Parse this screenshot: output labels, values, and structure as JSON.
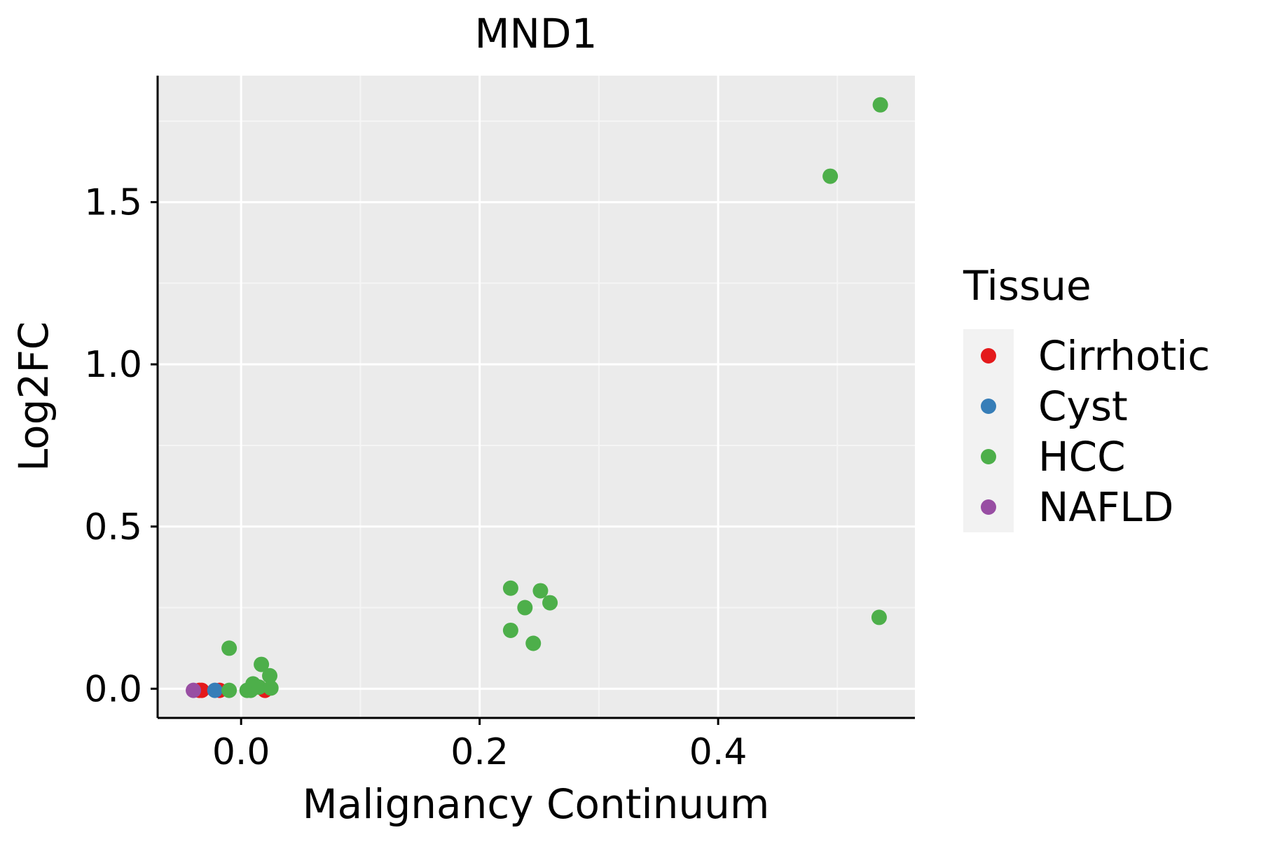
{
  "chart_data": {
    "type": "scatter",
    "title": "MND1",
    "xlabel": "Malignancy Continuum",
    "ylabel": "Log2FC",
    "xlim": [
      -0.07,
      0.565
    ],
    "ylim": [
      -0.09,
      1.89
    ],
    "x_ticks": [
      0.0,
      0.2,
      0.4
    ],
    "x_tick_labels": [
      "0.0",
      "0.2",
      "0.4"
    ],
    "y_ticks": [
      0.0,
      0.5,
      1.0,
      1.5
    ],
    "y_tick_labels": [
      "0.0",
      "0.5",
      "1.0",
      "1.5"
    ],
    "grid": true,
    "legend": {
      "title": "Tissue",
      "position": "right",
      "entries": [
        {
          "label": "Cirrhotic",
          "color": "#E41A1C"
        },
        {
          "label": "Cyst",
          "color": "#377EB8"
        },
        {
          "label": "HCC",
          "color": "#4DAF4A"
        },
        {
          "label": "NAFLD",
          "color": "#984EA3"
        }
      ]
    },
    "series": [
      {
        "name": "Cirrhotic",
        "color": "#E41A1C",
        "points": [
          {
            "x": -0.035,
            "y": -0.005
          },
          {
            "x": -0.033,
            "y": -0.005
          },
          {
            "x": -0.018,
            "y": -0.005
          },
          {
            "x": 0.02,
            "y": -0.005
          }
        ]
      },
      {
        "name": "Cyst",
        "color": "#377EB8",
        "points": [
          {
            "x": -0.022,
            "y": -0.005
          }
        ]
      },
      {
        "name": "HCC",
        "color": "#4DAF4A",
        "points": [
          {
            "x": -0.01,
            "y": 0.125
          },
          {
            "x": -0.01,
            "y": -0.005
          },
          {
            "x": 0.005,
            "y": -0.005
          },
          {
            "x": 0.008,
            "y": -0.005
          },
          {
            "x": 0.01,
            "y": 0.015
          },
          {
            "x": 0.015,
            "y": 0.005
          },
          {
            "x": 0.017,
            "y": 0.075
          },
          {
            "x": 0.024,
            "y": 0.04
          },
          {
            "x": 0.025,
            "y": 0.002
          },
          {
            "x": 0.226,
            "y": 0.31
          },
          {
            "x": 0.226,
            "y": 0.18
          },
          {
            "x": 0.238,
            "y": 0.25
          },
          {
            "x": 0.245,
            "y": 0.14
          },
          {
            "x": 0.251,
            "y": 0.302
          },
          {
            "x": 0.259,
            "y": 0.265
          },
          {
            "x": 0.494,
            "y": 1.58
          },
          {
            "x": 0.536,
            "y": 1.8
          },
          {
            "x": 0.535,
            "y": 0.22
          }
        ]
      },
      {
        "name": "NAFLD",
        "color": "#984EA3",
        "points": [
          {
            "x": -0.04,
            "y": -0.005
          }
        ]
      }
    ]
  },
  "colors": {
    "panel_background": "#EBEBEB",
    "grid_major": "#FFFFFF",
    "grid_minor": "#F5F5F5",
    "legend_key_background": "#F2F2F2",
    "axis_line": "#000000"
  }
}
